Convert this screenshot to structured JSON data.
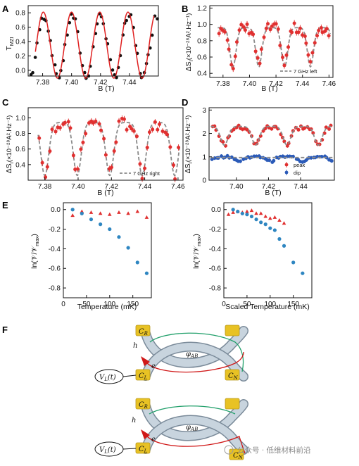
{
  "colors": {
    "measured": "#111111",
    "fit_red": "#e02020",
    "data_red": "#e03030",
    "model_gray": "#8a8a8a",
    "dip_blue": "#2a5ab8",
    "temp_blue": "#2e86c1",
    "ring_fill": "#c8d4de",
    "ring_stroke": "#7a8a99",
    "contact_gold": "#e8c224",
    "path_red": "#d01818",
    "path_green": "#22a06b"
  },
  "panels": {
    "A": {
      "letter": "A",
      "ylabel": "T",
      "ylabel_sub": "MZI",
      "xlabel": "B (T)"
    },
    "B": {
      "letter": "B",
      "ylabel": "ΔS",
      "ylabel_sub": "I",
      "ylabel_rest": "(×10⁻²⁸A².Hz⁻¹)",
      "xlabel": "B (T)",
      "legend": "7 GHz left"
    },
    "C": {
      "letter": "C",
      "ylabel": "ΔS",
      "ylabel_sub": "I",
      "ylabel_rest": "(×10⁻²⁸A².Hz⁻¹)",
      "xlabel": "B (T)",
      "legend": "7 GHz right"
    },
    "D": {
      "letter": "D",
      "ylabel": "ΔS",
      "ylabel_sub": "I",
      "ylabel_rest": "(×10⁻²⁸A².Hz⁻¹)",
      "xlabel": "B (T)",
      "legend_peak": "peak",
      "legend_dip": "dip"
    },
    "E": {
      "letter": "E",
      "ylabel": "ln(𝒱/𝒱",
      "ylabel_sub": "max",
      "ylabel_end": ")",
      "xlabel_left": "Temperature (mK)",
      "xlabel_right": "Scaled Temperature (mK)"
    },
    "F": {
      "letter": "F"
    }
  },
  "chart_data": [
    {
      "id": "A",
      "type": "scatter",
      "xlabel": "B (T)",
      "ylabel": "T_MZI",
      "xlim": [
        7.37,
        7.46
      ],
      "ylim": [
        -0.08,
        0.9
      ],
      "xticks": [
        "7.38",
        "7.40",
        "7.42",
        "7.44"
      ],
      "xtick_values": [
        7.38,
        7.4,
        7.42,
        7.44
      ],
      "yticks": [
        "0.0",
        "0.2",
        "0.4",
        "0.6",
        "0.8"
      ],
      "ytick_values": [
        0.0,
        0.2,
        0.4,
        0.6,
        0.8
      ],
      "model": {
        "kind": "cosine",
        "offset": 0.35,
        "amplitude": 0.46,
        "period": 0.0195,
        "phase_x": 7.3805
      },
      "series": [
        {
          "kind": "points",
          "color_key": "measured",
          "x_start": 7.372,
          "x_end": 7.459,
          "count": 60,
          "offset": 0.34,
          "amplitude": 0.42,
          "period": 0.0195,
          "phase_x": 7.381
        },
        {
          "kind": "line",
          "color_key": "fit_red",
          "x_start": 7.375,
          "x_end": 7.457,
          "offset": 0.35,
          "amplitude": 0.46,
          "period": 0.0195,
          "phase_x": 7.3805
        }
      ]
    },
    {
      "id": "B",
      "type": "scatter",
      "xlabel": "B (T)",
      "ylabel": "ΔS_I (×10⁻²⁸A².Hz⁻¹)",
      "xlim": [
        7.37,
        7.463
      ],
      "ylim": [
        0.35,
        1.23
      ],
      "xticks": [
        "7.38",
        "7.40",
        "7.42",
        "7.44",
        "7.46"
      ],
      "xtick_values": [
        7.38,
        7.4,
        7.42,
        7.44,
        7.46
      ],
      "yticks": [
        "0.4",
        "0.6",
        "0.8",
        "1.0",
        "1.2"
      ],
      "ytick_values": [
        0.4,
        0.6,
        0.8,
        1.0,
        1.2
      ],
      "legend": "7 GHz left",
      "series": [
        {
          "kind": "model",
          "color_key": "model_gray",
          "x_start": 7.376,
          "x_end": 7.461,
          "base": 0.96,
          "depth": 0.48,
          "period": 0.0195,
          "phase_x": 7.3875
        },
        {
          "kind": "points",
          "color_key": "data_red",
          "x_start": 7.377,
          "x_end": 7.46,
          "count": 55,
          "base": 0.95,
          "depth": 0.44,
          "period": 0.0195,
          "phase_x": 7.3875
        }
      ]
    },
    {
      "id": "C",
      "type": "scatter",
      "xlabel": "B (T)",
      "ylabel": "ΔS_I (×10⁻²⁸A².Hz⁻¹)",
      "xlim": [
        7.37,
        7.463
      ],
      "ylim": [
        0.2,
        1.13
      ],
      "xticks": [
        "7.38",
        "7.40",
        "7.42",
        "7.44",
        "7.46"
      ],
      "xtick_values": [
        7.38,
        7.4,
        7.42,
        7.44,
        7.46
      ],
      "yticks": [
        "0.4",
        "0.6",
        "0.8",
        "1.0"
      ],
      "ytick_values": [
        0.4,
        0.6,
        0.8,
        1.0
      ],
      "legend": "7 GHz right",
      "series": [
        {
          "kind": "model",
          "color_key": "model_gray",
          "x_start": 7.376,
          "x_end": 7.461,
          "base": 0.94,
          "depth": 0.68,
          "period": 0.0195,
          "phase_x": 7.3995
        },
        {
          "kind": "points",
          "color_key": "data_red",
          "x_start": 7.377,
          "x_end": 7.46,
          "count": 55,
          "base": 0.92,
          "depth": 0.62,
          "period": 0.0195,
          "phase_x": 7.3995
        }
      ]
    },
    {
      "id": "D",
      "type": "scatter",
      "xlabel": "B (T)",
      "ylabel": "ΔS_I (×10⁻²⁸A².Hz⁻¹)",
      "xlim": [
        7.383,
        7.461
      ],
      "ylim": [
        0.0,
        3.1
      ],
      "xticks": [
        "7.40",
        "7.42",
        "7.44"
      ],
      "xtick_values": [
        7.4,
        7.42,
        7.44
      ],
      "yticks": [
        "0",
        "1",
        "2",
        "3"
      ],
      "ytick_values": [
        0,
        1,
        2,
        3
      ],
      "series": [
        {
          "name": "peak",
          "kind": "points",
          "color_key": "data_red",
          "x_start": 7.385,
          "x_end": 7.459,
          "count": 55,
          "base": 2.25,
          "depth": 0.75,
          "period": 0.0195,
          "phase_x": 7.3925
        },
        {
          "kind": "model",
          "color_key": "model_gray",
          "x_start": 7.384,
          "x_end": 7.46,
          "base": 2.3,
          "depth": 0.8,
          "period": 0.0195,
          "phase_x": 7.3925
        },
        {
          "name": "dip",
          "kind": "points",
          "color_key": "dip_blue",
          "x_start": 7.385,
          "x_end": 7.459,
          "count": 55,
          "base": 1.0,
          "depth": 0.2,
          "period": 0.0195,
          "phase_x": 7.402
        },
        {
          "kind": "flat",
          "color_key": "model_gray",
          "x_start": 7.384,
          "x_end": 7.46,
          "value": 0.97
        }
      ]
    },
    {
      "id": "E-left",
      "type": "scatter",
      "xlabel": "Temperature (mK)",
      "ylabel": "ln(V/Vmax)",
      "xlim": [
        0,
        190
      ],
      "ylim": [
        -0.9,
        0.07
      ],
      "xticks": [
        "0",
        "50",
        "100",
        "150"
      ],
      "xtick_values": [
        0,
        50,
        100,
        150
      ],
      "yticks": [
        "0.0",
        "-0.2",
        "-0.4",
        "-0.6",
        "-0.8"
      ],
      "ytick_values": [
        0.0,
        -0.2,
        -0.4,
        -0.6,
        -0.8
      ],
      "series": [
        {
          "kind": "triangles",
          "color_key": "data_red",
          "x": [
            20,
            40,
            60,
            80,
            100,
            120,
            140,
            160,
            180
          ],
          "y": [
            -0.06,
            -0.02,
            -0.03,
            -0.04,
            -0.05,
            -0.03,
            -0.04,
            -0.02,
            -0.08
          ]
        },
        {
          "kind": "circles",
          "color_key": "temp_blue",
          "x": [
            20,
            40,
            60,
            80,
            100,
            120,
            140,
            160,
            180
          ],
          "y": [
            0.0,
            -0.04,
            -0.1,
            -0.15,
            -0.2,
            -0.28,
            -0.39,
            -0.54,
            -0.65
          ]
        }
      ]
    },
    {
      "id": "E-right",
      "type": "scatter",
      "xlabel": "Scaled Temperature (mK)",
      "ylabel": "ln(V/Vmax)",
      "xlim": [
        0,
        190
      ],
      "ylim": [
        -0.9,
        0.07
      ],
      "xticks": [
        "0",
        "50",
        "100",
        "150"
      ],
      "xtick_values": [
        0,
        50,
        100,
        150
      ],
      "yticks": [
        "0.0",
        "-0.2",
        "-0.4",
        "-0.6",
        "-0.8"
      ],
      "ytick_values": [
        0.0,
        -0.2,
        -0.4,
        -0.6,
        -0.8
      ],
      "series": [
        {
          "kind": "triangles",
          "color_key": "data_red",
          "x": [
            10,
            20,
            30,
            40,
            50,
            60,
            70,
            80,
            90,
            100,
            110,
            120,
            130
          ],
          "y": [
            -0.05,
            -0.03,
            -0.02,
            -0.03,
            -0.02,
            -0.01,
            -0.04,
            -0.04,
            -0.07,
            -0.09,
            -0.08,
            -0.11,
            -0.14
          ]
        },
        {
          "kind": "circles",
          "color_key": "temp_blue",
          "x": [
            20,
            30,
            40,
            50,
            60,
            70,
            80,
            90,
            100,
            110,
            120,
            130,
            150,
            170
          ],
          "y": [
            0.0,
            -0.02,
            -0.04,
            -0.05,
            -0.07,
            -0.1,
            -0.13,
            -0.15,
            -0.19,
            -0.21,
            -0.3,
            -0.37,
            -0.54,
            -0.65
          ]
        }
      ]
    }
  ],
  "diagram": {
    "top": {
      "contacts": {
        "cr": "C",
        "cr_sub": "R",
        "cl": "C",
        "cl_sub": "L",
        "cn": "C",
        "cn_sub": "N"
      },
      "labels": {
        "h": "h",
        "e": "e",
        "flux": "φ",
        "flux_sub": "AB"
      },
      "source": {
        "text": "V",
        "sub": "L",
        "rest": "(t)"
      }
    },
    "bottom": {
      "contacts": {
        "cr": "C",
        "cr_sub": "R",
        "cl": "C",
        "cl_sub": "L",
        "cn": "C",
        "cn_sub": "N"
      },
      "labels": {
        "h": "h",
        "e": "e",
        "flux": "φ",
        "flux_sub": "AB"
      },
      "source": {
        "text": "V",
        "sub": "L",
        "rest": "(t)"
      }
    },
    "watermark": "公众号 · 低维材料前沿"
  }
}
